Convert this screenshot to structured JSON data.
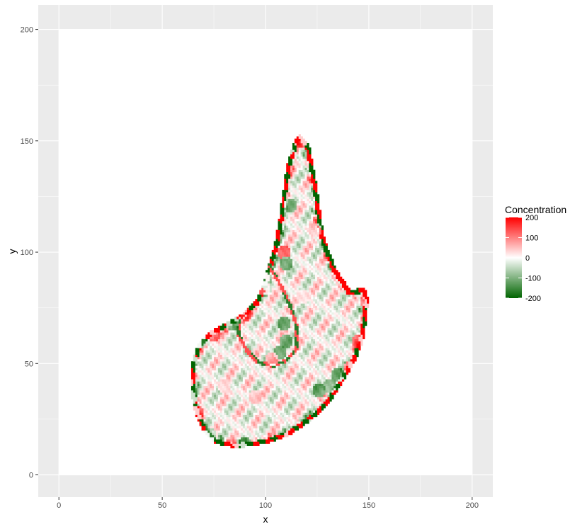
{
  "chart_data": {
    "type": "heatmap",
    "title": "",
    "xlabel": "x",
    "ylabel": "y",
    "xlim": [
      -10,
      210
    ],
    "ylim": [
      -10,
      211
    ],
    "panel_extent": {
      "x": [
        0,
        200
      ],
      "y": [
        0,
        200
      ]
    },
    "x_ticks": [
      "0",
      "50",
      "100",
      "150",
      "200"
    ],
    "y_ticks": [
      "0",
      "50",
      "100",
      "150",
      "200"
    ],
    "grid": true,
    "legend": {
      "title": "Concentration",
      "placement": "right",
      "labels": [
        "200",
        "100",
        "0",
        "-100",
        "-200"
      ],
      "values": [
        200,
        100,
        0,
        -100,
        -200
      ],
      "range": [
        -200,
        200
      ],
      "color_high": "#ff0000",
      "color_mid": "#ffffff",
      "color_low": "#006400"
    },
    "colors": {
      "panel_background": "#ebebeb",
      "grid": "#ffffff",
      "positive": "#ff0000",
      "negative": "#006400"
    },
    "shape_outline": [
      [
        116,
        153
      ],
      [
        121,
        149
      ],
      [
        123,
        140
      ],
      [
        125,
        130
      ],
      [
        127,
        115
      ],
      [
        129,
        105
      ],
      [
        134,
        93
      ],
      [
        141,
        83
      ],
      [
        148,
        84
      ],
      [
        150,
        79
      ],
      [
        149,
        71
      ],
      [
        148,
        62
      ],
      [
        144,
        52
      ],
      [
        139,
        44
      ],
      [
        133,
        35
      ],
      [
        127,
        28
      ],
      [
        120,
        23
      ],
      [
        112,
        18
      ],
      [
        104,
        15
      ],
      [
        95,
        13
      ],
      [
        85,
        12
      ],
      [
        76,
        14
      ],
      [
        70,
        19
      ],
      [
        66,
        27
      ],
      [
        64,
        37
      ],
      [
        64,
        50
      ],
      [
        67,
        58
      ],
      [
        72,
        64
      ],
      [
        80,
        68
      ],
      [
        88,
        72
      ],
      [
        95,
        78
      ],
      [
        99,
        86
      ],
      [
        101,
        94
      ],
      [
        104,
        102
      ],
      [
        106,
        112
      ],
      [
        108,
        125
      ],
      [
        110,
        138
      ],
      [
        113,
        148
      ]
    ],
    "inner_lobe_outline": [
      [
        99,
        101
      ],
      [
        104,
        92
      ],
      [
        109,
        84
      ],
      [
        113,
        76
      ],
      [
        116,
        66
      ],
      [
        116,
        57
      ],
      [
        111,
        51
      ],
      [
        104,
        48
      ],
      [
        96,
        50
      ],
      [
        90,
        56
      ],
      [
        86,
        63
      ],
      [
        87,
        70
      ],
      [
        92,
        78
      ],
      [
        96,
        88
      ]
    ],
    "sample_cells": [
      {
        "x": 111,
        "y": 147,
        "value": -200
      },
      {
        "x": 117,
        "y": 150,
        "value": 200
      },
      {
        "x": 112,
        "y": 121,
        "value": -150
      },
      {
        "x": 109,
        "y": 100,
        "value": 200
      },
      {
        "x": 110,
        "y": 95,
        "value": -200
      },
      {
        "x": 100,
        "y": 88,
        "value": -120
      },
      {
        "x": 99,
        "y": 84,
        "value": 90
      },
      {
        "x": 139,
        "y": 93,
        "value": 200
      },
      {
        "x": 149,
        "y": 78,
        "value": 200
      },
      {
        "x": 145,
        "y": 60,
        "value": 200
      },
      {
        "x": 141,
        "y": 48,
        "value": 200
      },
      {
        "x": 126,
        "y": 38,
        "value": -200
      },
      {
        "x": 128,
        "y": 25,
        "value": 200
      },
      {
        "x": 122,
        "y": 22,
        "value": -200
      },
      {
        "x": 112,
        "y": 17,
        "value": 200
      },
      {
        "x": 90,
        "y": 14,
        "value": -200
      },
      {
        "x": 84,
        "y": 12,
        "value": 200
      },
      {
        "x": 73,
        "y": 18,
        "value": -150
      },
      {
        "x": 67,
        "y": 28,
        "value": 200
      },
      {
        "x": 64,
        "y": 35,
        "value": -200
      },
      {
        "x": 63,
        "y": 43,
        "value": 200
      },
      {
        "x": 64,
        "y": 51,
        "value": -200
      },
      {
        "x": 68,
        "y": 60,
        "value": -150
      },
      {
        "x": 75,
        "y": 63,
        "value": 200
      },
      {
        "x": 84,
        "y": 68,
        "value": -200
      },
      {
        "x": 90,
        "y": 72,
        "value": 200
      },
      {
        "x": 109,
        "y": 68,
        "value": -200
      },
      {
        "x": 110,
        "y": 60,
        "value": -180
      },
      {
        "x": 107,
        "y": 55,
        "value": -180
      },
      {
        "x": 103,
        "y": 52,
        "value": 120
      },
      {
        "x": 135,
        "y": 45,
        "value": -180
      },
      {
        "x": 131,
        "y": 40,
        "value": -160
      },
      {
        "x": 118,
        "y": 80,
        "value": 40
      },
      {
        "x": 124,
        "y": 110,
        "value": 60
      },
      {
        "x": 95,
        "y": 35,
        "value": 80
      },
      {
        "x": 80,
        "y": 40,
        "value": 50
      }
    ]
  }
}
